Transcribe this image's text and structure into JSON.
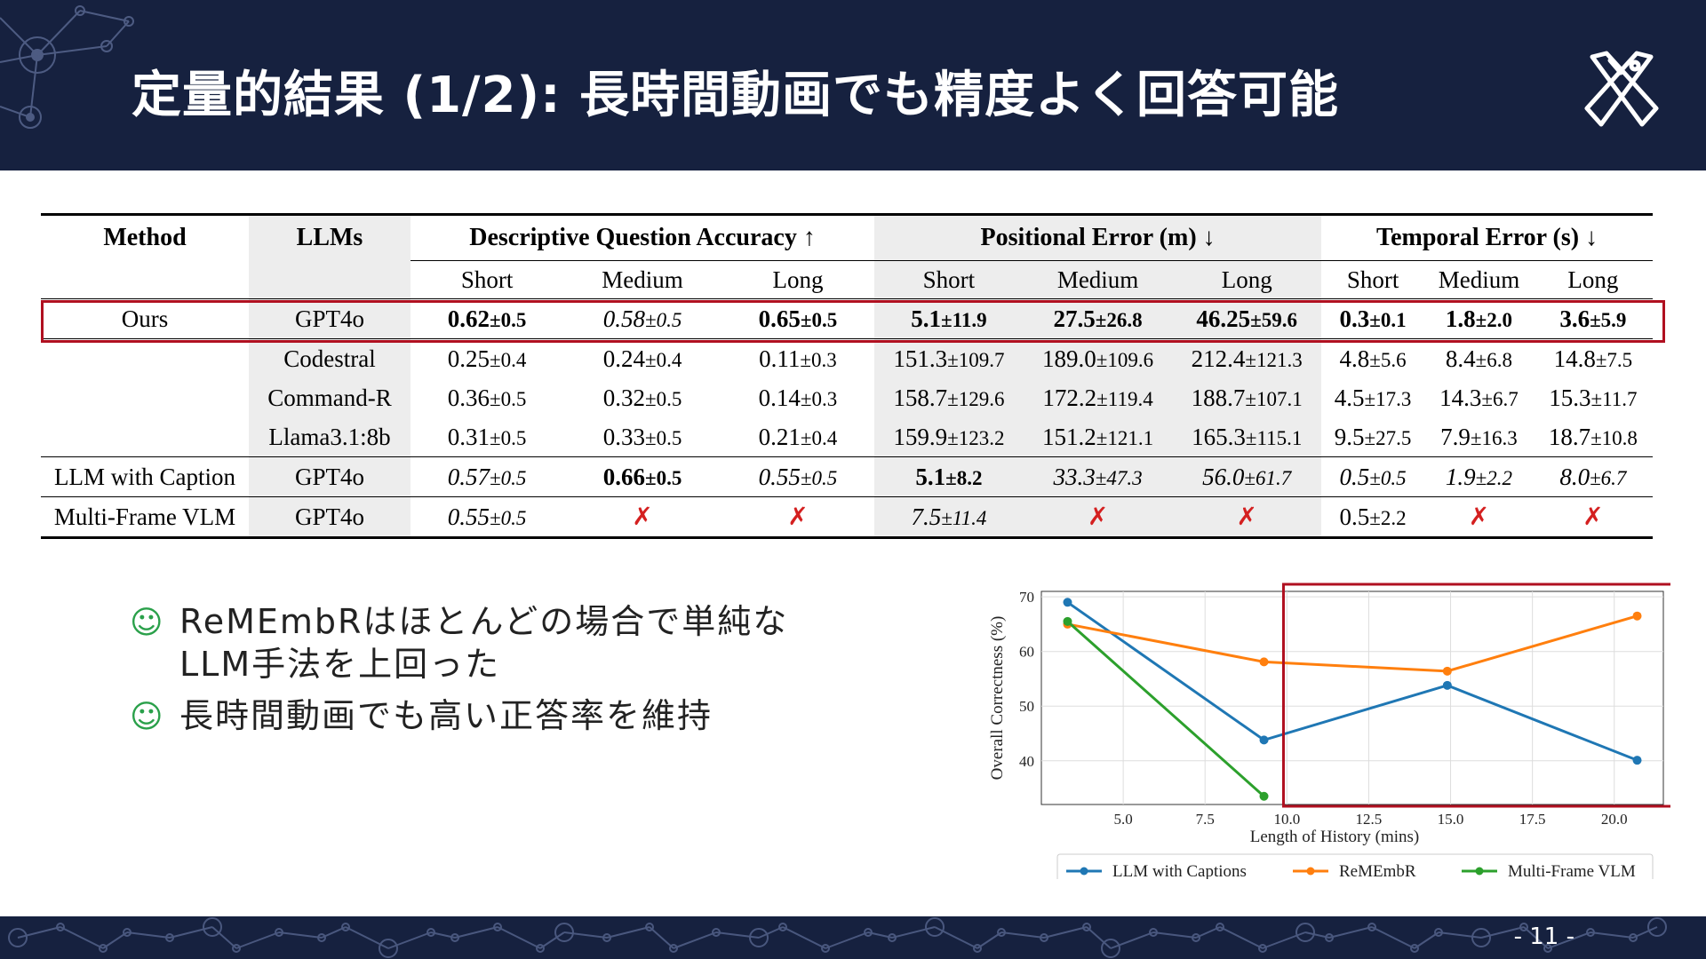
{
  "slide": {
    "title": "定量的結果 (1/2): 長時間動画でも精度よく回答可能",
    "page_number": "- 11 -"
  },
  "table": {
    "headers": {
      "method": "Method",
      "llms": "LLMs",
      "dqa": "Descriptive Question Accuracy ↑",
      "pos": "Positional Error (m) ↓",
      "temp": "Temporal Error (s) ↓"
    },
    "subheaders": [
      "Short",
      "Medium",
      "Long",
      "Short",
      "Medium",
      "Long",
      "Short",
      "Medium",
      "Long"
    ],
    "rows": [
      {
        "method": "Ours",
        "llm": "GPT4o",
        "cells": [
          {
            "v": "0.62",
            "s": "±0.5",
            "b": true
          },
          {
            "v": "0.58",
            "s": "±0.5",
            "i": true
          },
          {
            "v": "0.65",
            "s": "±0.5",
            "b": true
          },
          {
            "v": "5.1",
            "s": "±11.9",
            "b": true
          },
          {
            "v": "27.5",
            "s": "±26.8",
            "b": true
          },
          {
            "v": "46.25",
            "s": "±59.6",
            "b": true
          },
          {
            "v": "0.3",
            "s": "±0.1",
            "b": true
          },
          {
            "v": "1.8",
            "s": "±2.0",
            "b": true
          },
          {
            "v": "3.6",
            "s": "±5.9",
            "b": true
          }
        ]
      },
      {
        "method": "",
        "llm": "Codestral",
        "cells": [
          {
            "v": "0.25",
            "s": "±0.4"
          },
          {
            "v": "0.24",
            "s": "±0.4"
          },
          {
            "v": "0.11",
            "s": "±0.3"
          },
          {
            "v": "151.3",
            "s": "±109.7"
          },
          {
            "v": "189.0",
            "s": "±109.6"
          },
          {
            "v": "212.4",
            "s": "±121.3"
          },
          {
            "v": "4.8",
            "s": "±5.6"
          },
          {
            "v": "8.4",
            "s": "±6.8"
          },
          {
            "v": "14.8",
            "s": "±7.5"
          }
        ]
      },
      {
        "method": "",
        "llm": "Command-R",
        "cells": [
          {
            "v": "0.36",
            "s": "±0.5"
          },
          {
            "v": "0.32",
            "s": "±0.5"
          },
          {
            "v": "0.14",
            "s": "±0.3"
          },
          {
            "v": "158.7",
            "s": "±129.6"
          },
          {
            "v": "172.2",
            "s": "±119.4"
          },
          {
            "v": "188.7",
            "s": "±107.1"
          },
          {
            "v": "4.5",
            "s": "±17.3"
          },
          {
            "v": "14.3",
            "s": "±6.7"
          },
          {
            "v": "15.3",
            "s": "±11.7"
          }
        ]
      },
      {
        "method": "",
        "llm": "Llama3.1:8b",
        "cells": [
          {
            "v": "0.31",
            "s": "±0.5"
          },
          {
            "v": "0.33",
            "s": "±0.5"
          },
          {
            "v": "0.21",
            "s": "±0.4"
          },
          {
            "v": "159.9",
            "s": "±123.2"
          },
          {
            "v": "151.2",
            "s": "±121.1"
          },
          {
            "v": "165.3",
            "s": "±115.1"
          },
          {
            "v": "9.5",
            "s": "±27.5"
          },
          {
            "v": "7.9",
            "s": "±16.3"
          },
          {
            "v": "18.7",
            "s": "±10.8"
          }
        ]
      },
      {
        "method": "LLM with Caption",
        "llm": "GPT4o",
        "cells": [
          {
            "v": "0.57",
            "s": "±0.5",
            "i": true
          },
          {
            "v": "0.66",
            "s": "±0.5",
            "b": true
          },
          {
            "v": "0.55",
            "s": "±0.5",
            "i": true
          },
          {
            "v": "5.1",
            "s": "±8.2",
            "b": true
          },
          {
            "v": "33.3",
            "s": "±47.3",
            "i": true
          },
          {
            "v": "56.0",
            "s": "±61.7",
            "i": true
          },
          {
            "v": "0.5",
            "s": "±0.5",
            "i": true
          },
          {
            "v": "1.9",
            "s": "±2.2",
            "i": true
          },
          {
            "v": "8.0",
            "s": "±6.7",
            "i": true
          }
        ]
      },
      {
        "method": "Multi-Frame VLM",
        "llm": "GPT4o",
        "cells": [
          {
            "v": "0.55",
            "s": "±0.5",
            "i": true
          },
          {
            "x": "✗"
          },
          {
            "x": "✗"
          },
          {
            "v": "7.5",
            "s": "±11.4",
            "i": true
          },
          {
            "x": "✗"
          },
          {
            "x": "✗"
          },
          {
            "v": "0.5",
            "s": "±2.2"
          },
          {
            "x": "✗"
          },
          {
            "x": "✗"
          }
        ]
      }
    ]
  },
  "bullets": [
    {
      "icon": "smiley-icon",
      "text_line1": "ReMEmbRはほとんどの場合で単純な",
      "text_line2": "LLM手法を上回った"
    },
    {
      "icon": "smiley-icon",
      "text_line1": "長時間動画でも高い正答率を維持",
      "text_line2": ""
    }
  ],
  "chart_data": {
    "type": "line",
    "xlabel": "Length of History (mins)",
    "ylabel": "Overall Correctness (%)",
    "xlim": [
      2.5,
      21.5
    ],
    "ylim": [
      32,
      71
    ],
    "xticks": [
      5.0,
      7.5,
      10.0,
      12.5,
      15.0,
      17.5,
      20.0
    ],
    "xtick_labels": [
      "5.0",
      "7.5",
      "10.0",
      "12.5",
      "15.0",
      "17.5",
      "20.0"
    ],
    "yticks": [
      40,
      50,
      60,
      70
    ],
    "grid": true,
    "legend_position": "bottom",
    "series": [
      {
        "name": "LLM with Captions",
        "color": "#1f77b4",
        "x": [
          3.3,
          9.3,
          14.9,
          20.7
        ],
        "y": [
          69.0,
          43.8,
          53.8,
          40.1
        ]
      },
      {
        "name": "ReMEmbR",
        "color": "#ff7f0e",
        "x": [
          3.3,
          9.3,
          14.9,
          20.7
        ],
        "y": [
          65.0,
          58.1,
          56.4,
          66.5
        ]
      },
      {
        "name": "Multi-Frame VLM",
        "color": "#2ca02c",
        "x": [
          3.3,
          9.3
        ],
        "y": [
          65.5,
          33.5
        ]
      }
    ],
    "highlight_box_color": "#b01020"
  }
}
